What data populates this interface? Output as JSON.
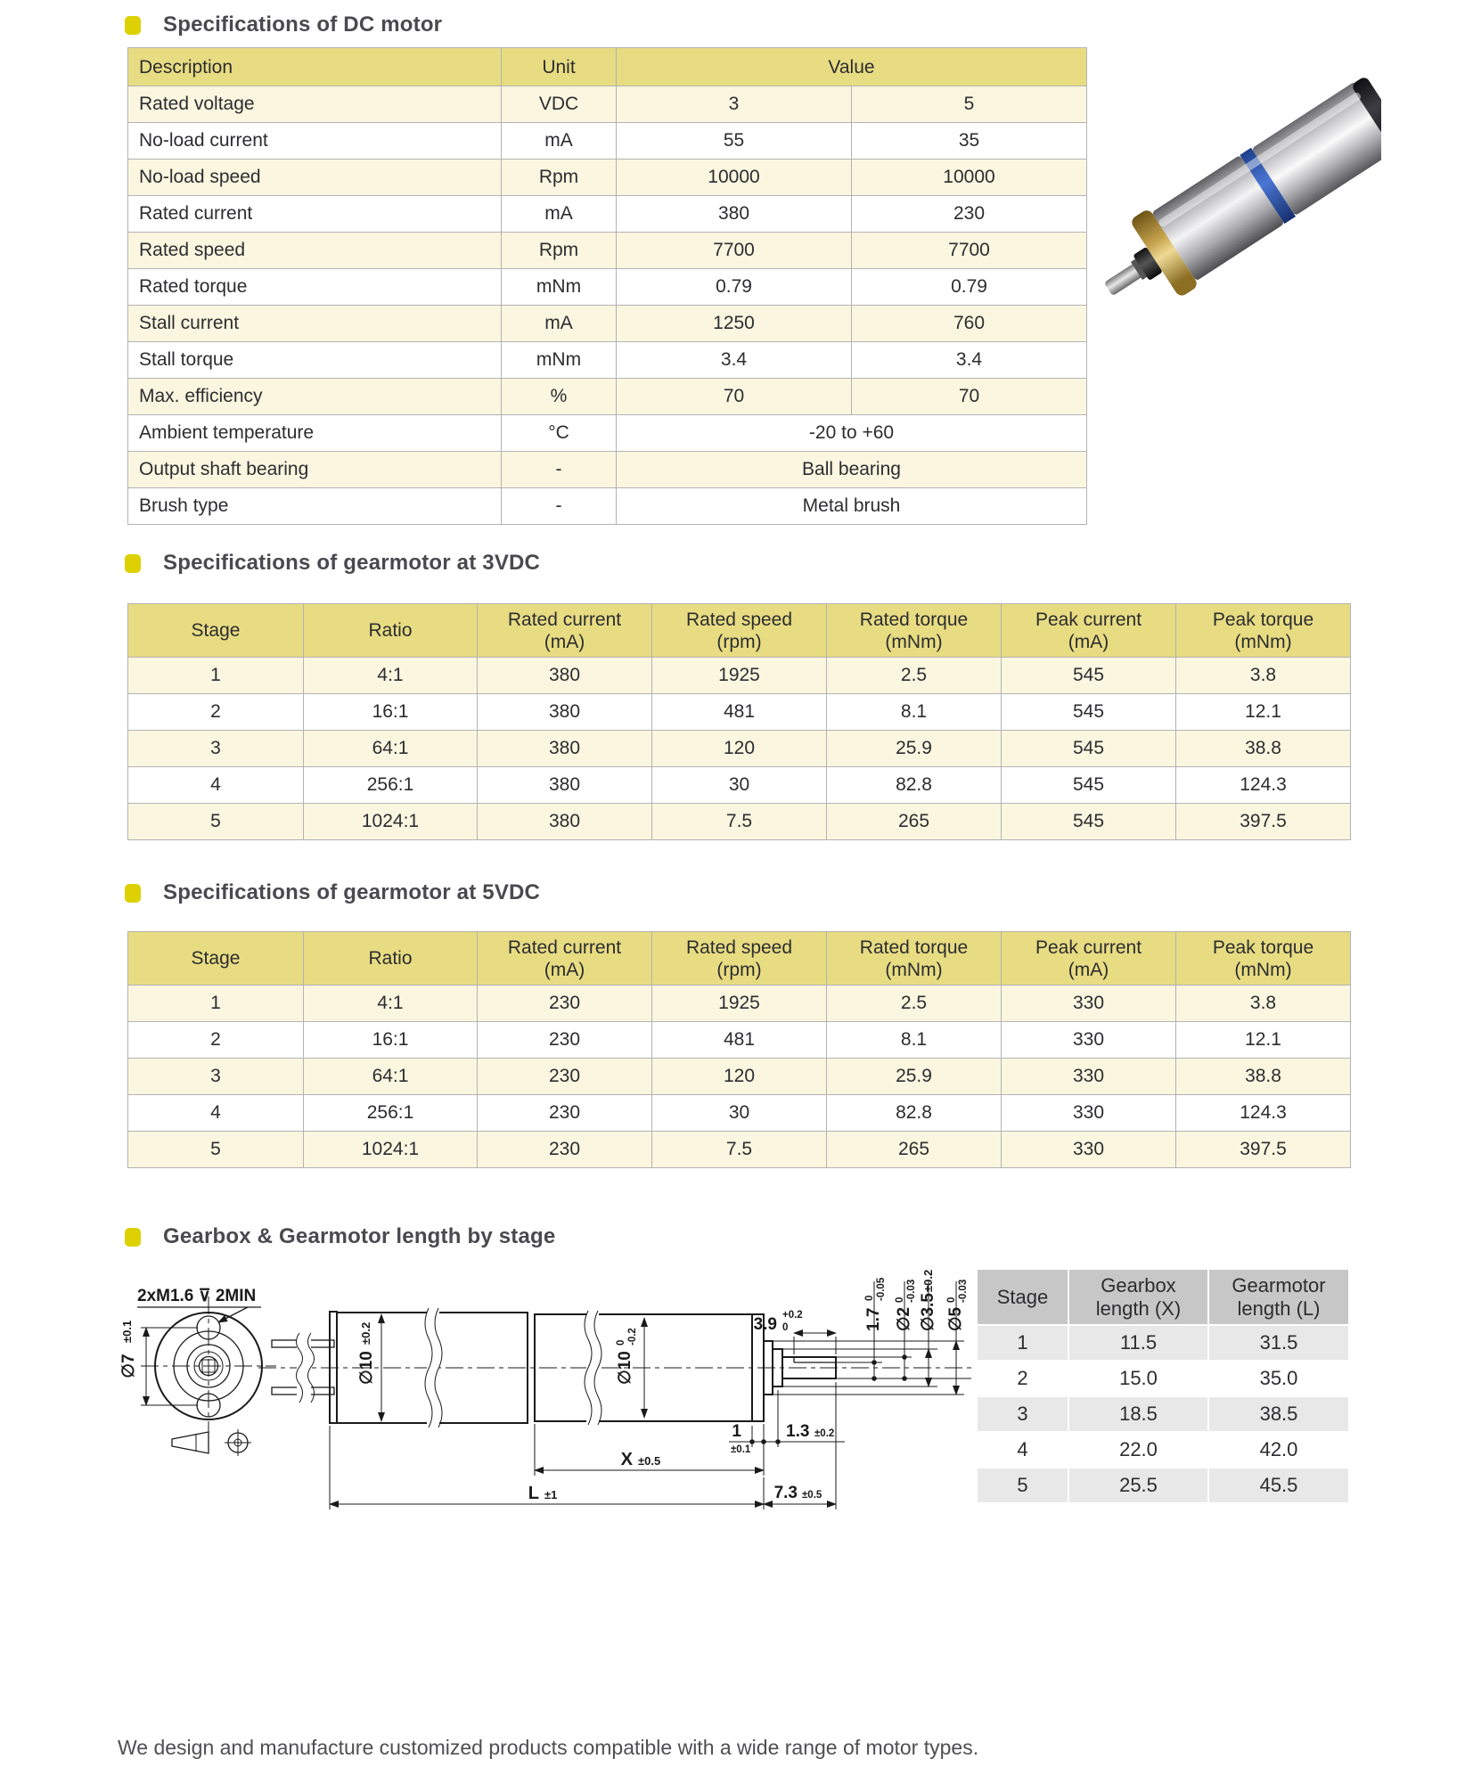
{
  "sections": {
    "dc_title": "Specifications of DC motor",
    "g3_title": "Specifications of gearmotor at 3VDC",
    "g5_title": "Specifications of gearmotor at 5VDC",
    "len_title": "Gearbox & Gearmotor length by stage"
  },
  "dc_table": {
    "headers": [
      [
        "Description",
        "Unit",
        {
          "v": "Value",
          "colspan": 2
        }
      ]
    ],
    "rows": [
      [
        "Rated voltage",
        "VDC",
        "3",
        "5"
      ],
      [
        "No-load current",
        "mA",
        "55",
        "35"
      ],
      [
        "No-load speed",
        "Rpm",
        "10000",
        "10000"
      ],
      [
        "Rated current",
        "mA",
        "380",
        "230"
      ],
      [
        "Rated speed",
        "Rpm",
        "7700",
        "7700"
      ],
      [
        "Rated torque",
        "mNm",
        "0.79",
        "0.79"
      ],
      [
        "Stall current",
        "mA",
        "1250",
        "760"
      ],
      [
        "Stall torque",
        "mNm",
        "3.4",
        "3.4"
      ],
      [
        "Max. efficiency",
        "%",
        "70",
        "70"
      ],
      [
        "Ambient temperature",
        "°C",
        {
          "v": "-20 to +60",
          "colspan": 2
        }
      ],
      [
        "Output shaft bearing",
        "-",
        {
          "v": "Ball bearing",
          "colspan": 2
        }
      ],
      [
        "Brush type",
        "-",
        {
          "v": "Metal brush",
          "colspan": 2
        }
      ]
    ]
  },
  "g3_table": {
    "headers": [
      [
        "Stage",
        "Ratio",
        "Rated current\n(mA)",
        "Rated speed\n(rpm)",
        "Rated torque\n(mNm)",
        "Peak current\n(mA)",
        "Peak torque\n(mNm)"
      ]
    ],
    "rows": [
      [
        "1",
        "4:1",
        "380",
        "1925",
        "2.5",
        "545",
        "3.8"
      ],
      [
        "2",
        "16:1",
        "380",
        "481",
        "8.1",
        "545",
        "12.1"
      ],
      [
        "3",
        "64:1",
        "380",
        "120",
        "25.9",
        "545",
        "38.8"
      ],
      [
        "4",
        "256:1",
        "380",
        "30",
        "82.8",
        "545",
        "124.3"
      ],
      [
        "5",
        "1024:1",
        "380",
        "7.5",
        "265",
        "545",
        "397.5"
      ]
    ]
  },
  "g5_table": {
    "headers": [
      [
        "Stage",
        "Ratio",
        "Rated current\n(mA)",
        "Rated speed\n(rpm)",
        "Rated torque\n(mNm)",
        "Peak current\n(mA)",
        "Peak torque\n(mNm)"
      ]
    ],
    "rows": [
      [
        "1",
        "4:1",
        "230",
        "1925",
        "2.5",
        "330",
        "3.8"
      ],
      [
        "2",
        "16:1",
        "230",
        "481",
        "8.1",
        "330",
        "12.1"
      ],
      [
        "3",
        "64:1",
        "230",
        "120",
        "25.9",
        "330",
        "38.8"
      ],
      [
        "4",
        "256:1",
        "230",
        "30",
        "82.8",
        "330",
        "124.3"
      ],
      [
        "5",
        "1024:1",
        "230",
        "7.5",
        "265",
        "330",
        "397.5"
      ]
    ]
  },
  "length_table": {
    "headers": [
      [
        "Stage",
        "Gearbox\nlength (X)",
        "Gearmotor\nlength (L)"
      ]
    ],
    "rows": [
      [
        "1",
        "11.5",
        "31.5"
      ],
      [
        "2",
        "15.0",
        "35.0"
      ],
      [
        "3",
        "18.5",
        "38.5"
      ],
      [
        "4",
        "22.0",
        "42.0"
      ],
      [
        "5",
        "25.5",
        "45.5"
      ]
    ]
  },
  "drawing": {
    "thread_note": "2xM1.6 ⊽ 2MIN",
    "dia7": {
      "main": "∅7",
      "tol": "±0.1"
    },
    "dia10_motor": {
      "main": "∅10",
      "tol": "±0.2"
    },
    "dia10_gear": {
      "main": "∅10",
      "tol_u": "0",
      "tol_l": "-0.2"
    },
    "dim39": {
      "main": "3.9",
      "tol_u": "+0.2",
      "tol_l": "0"
    },
    "dim17": {
      "main": "1.7",
      "tol_u": "0",
      "tol_l": "-0.05"
    },
    "dia2": {
      "main": "∅2",
      "tol_u": "0",
      "tol_l": "-0.03"
    },
    "dia35": {
      "main": "∅3.5",
      "tol": "±0.2"
    },
    "dia5": {
      "main": "∅5",
      "tol_u": "0",
      "tol_l": "-0.03"
    },
    "dim1": {
      "main": "1",
      "tol": "±0.1"
    },
    "dim13": {
      "main": "1.3",
      "tol": "±0.2"
    },
    "dimX": {
      "main": "X",
      "tol": "±0.5"
    },
    "dimL": {
      "main": "L",
      "tol": "±1"
    },
    "dim73": {
      "main": "7.3",
      "tol": "±0.5"
    }
  },
  "footer": "We design and manufacture customized products compatible with a wide range of motor types.",
  "colors": {
    "table_header_yellow": "#e7dc82",
    "table_row_yellow": "#faf6e0",
    "length_header_gray": "#c7c7c7",
    "length_row_gray": "#e8e8e8",
    "bullet_yellow": "#ddd103",
    "motor_band_blue": "#3f6cc8",
    "motor_flange_brass": "#c7a44e"
  }
}
